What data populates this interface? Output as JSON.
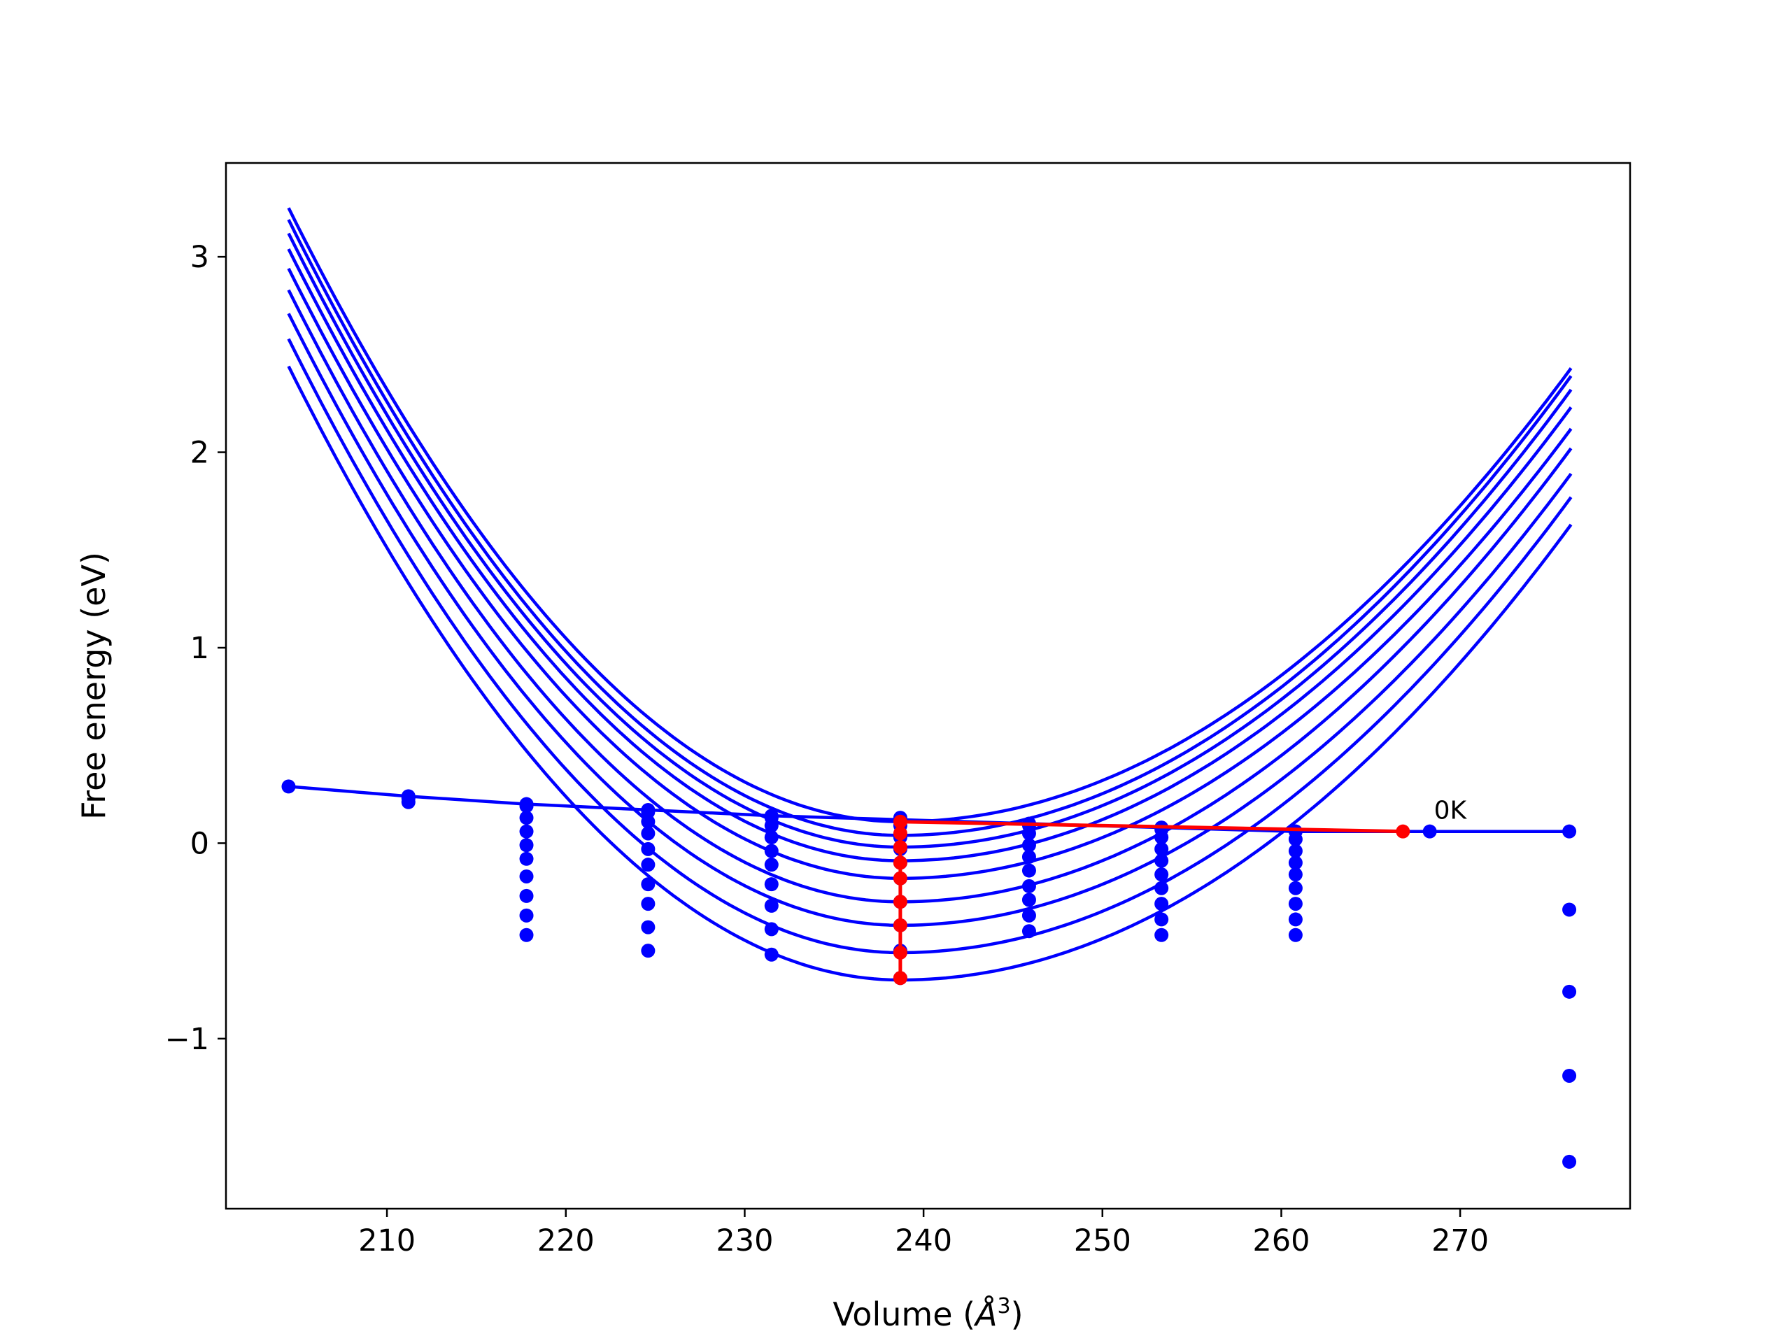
{
  "chart_data": {
    "type": "line",
    "xlabel_prefix": "Volume (",
    "xlabel_symbol": "Å",
    "xlabel_exp": "3",
    "xlabel_suffix": ")",
    "ylabel": "Free energy (eV)",
    "xlim": [
      201,
      279.5
    ],
    "ylim": [
      -1.87,
      3.48
    ],
    "xticks": [
      210,
      220,
      230,
      240,
      250,
      260,
      270
    ],
    "yticks": [
      -1,
      0,
      1,
      2,
      3
    ],
    "ytick_labels": [
      "−1",
      "0",
      "1",
      "2",
      "3"
    ],
    "grid": false,
    "legend": "none",
    "colors": {
      "curves": "#0000ff",
      "highlight": "#ff0000"
    },
    "eos_curves": {
      "x_range": [
        204.5,
        276.2
      ],
      "minima": [
        {
          "x": 238.7,
          "y": 0.11
        },
        {
          "x": 238.7,
          "y": 0.04
        },
        {
          "x": 238.7,
          "y": -0.02
        },
        {
          "x": 238.7,
          "y": -0.09
        },
        {
          "x": 238.7,
          "y": -0.18
        },
        {
          "x": 238.7,
          "y": -0.3
        },
        {
          "x": 238.7,
          "y": -0.42
        },
        {
          "x": 238.7,
          "y": -0.56
        },
        {
          "x": 238.7,
          "y": -0.7
        }
      ],
      "left_ends": [
        3.25,
        3.19,
        3.12,
        3.04,
        2.94,
        2.83,
        2.71,
        2.58,
        2.44
      ],
      "right_ends": [
        2.43,
        2.39,
        2.32,
        2.23,
        2.12,
        2.02,
        1.89,
        1.77,
        1.63
      ]
    },
    "thermal_points": [
      {
        "x": 211.2,
        "y": [
          0.23,
          0.21
        ]
      },
      {
        "x": 217.8,
        "y": [
          0.19,
          0.13,
          0.06,
          -0.01,
          -0.08,
          -0.17,
          -0.27,
          -0.37,
          -0.47
        ]
      },
      {
        "x": 224.6,
        "y": [
          0.16,
          0.11,
          0.05,
          -0.03,
          -0.11,
          -0.21,
          -0.31,
          -0.43,
          -0.55
        ]
      },
      {
        "x": 231.5,
        "y": [
          0.13,
          0.09,
          0.03,
          -0.04,
          -0.11,
          -0.21,
          -0.32,
          -0.44,
          -0.57
        ]
      },
      {
        "x": 238.7,
        "y": [
          0.13,
          0.09,
          0.03,
          -0.03,
          -0.1,
          -0.18,
          -0.3,
          -0.42,
          -0.55,
          -0.69
        ]
      },
      {
        "x": 245.9,
        "y": [
          0.09,
          0.05,
          -0.01,
          -0.07,
          -0.14,
          -0.22,
          -0.29,
          -0.37,
          -0.45
        ]
      },
      {
        "x": 253.3,
        "y": [
          0.07,
          0.03,
          -0.03,
          -0.09,
          -0.16,
          -0.23,
          -0.31,
          -0.39,
          -0.47
        ]
      },
      {
        "x": 260.8,
        "y": [
          0.06,
          0.02,
          -0.04,
          -0.1,
          -0.16,
          -0.23,
          -0.31,
          -0.39,
          -0.47
        ]
      },
      {
        "x": 276.1,
        "y": [
          -0.34,
          -0.76,
          -1.19,
          -1.63
        ]
      }
    ],
    "minimum_line": {
      "x": [
        204.5,
        211.2,
        217.8,
        224.6,
        231.5,
        238.7,
        245.9,
        253.3,
        260.8,
        268.3,
        276.1
      ],
      "y": [
        0.29,
        0.24,
        0.2,
        0.17,
        0.14,
        0.12,
        0.1,
        0.08,
        0.06,
        0.06,
        0.06
      ]
    },
    "highlight": {
      "vertical_x": 238.7,
      "vertical_y": [
        0.11,
        0.05,
        -0.02,
        -0.1,
        -0.18,
        -0.3,
        -0.42,
        -0.56,
        -0.69
      ],
      "line_x": [
        238.7,
        266.8
      ],
      "line_y": [
        0.11,
        0.06
      ]
    },
    "annotation": {
      "text": "0K",
      "x": 268.3,
      "y": 0.06
    }
  }
}
